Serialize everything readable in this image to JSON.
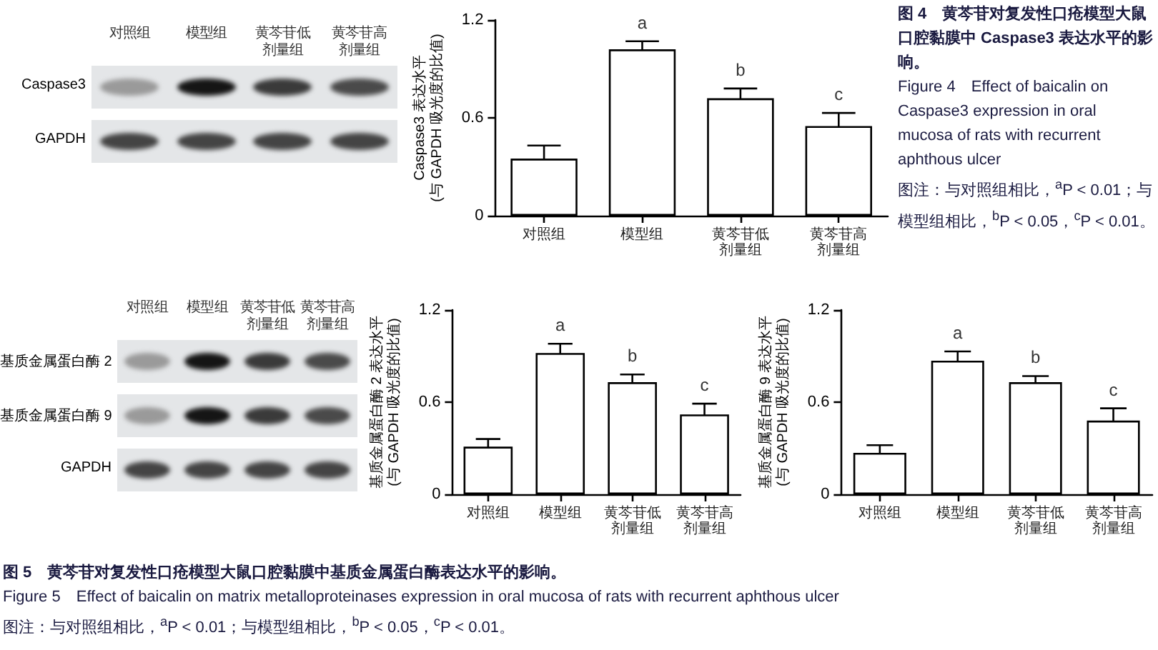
{
  "chart_data": [
    {
      "type": "bar",
      "ylabel": "Caspase3 表达水平\n(与 GAPDH 吸光度的比值)",
      "categories": [
        "对照组",
        "模型组",
        "黄芩苷低剂量组",
        "黄芩苷高剂量组"
      ],
      "values": [
        0.35,
        1.02,
        0.72,
        0.55
      ],
      "errors": [
        0.08,
        0.05,
        0.06,
        0.08
      ],
      "color": "#ffffff",
      "ylim": [
        0,
        1.2
      ],
      "yticks": [
        0,
        0.6,
        1.2
      ],
      "annotations": [
        {
          "text": "a",
          "x": "模型组",
          "y": 1.02
        },
        {
          "text": "b",
          "x": "黄芩苷低剂量组",
          "y": 0.72
        },
        {
          "text": "c",
          "x": "黄芩苷高剂量组",
          "y": 0.55
        },
        "图 4　黄芩苷对复发性口疮模型大鼠口腔黏膜中 Caspase3 表达水平的影响。",
        "Figure 4　Effect of baicalin on Caspase3 expression in oral mucosa of rats with recurrent aphthous ulcer",
        "图注：与对照组相比，$^{a}$P < 0.01；与模型组相比，$^{b}$P < 0.05，$^{c}$P < 0.01。",
        "对照组",
        "模型组",
        "黄芩苷低剂量组",
        "黄芩苷高剂量组",
        "Caspase3",
        "GAPDH"
      ]
    },
    {
      "type": "bar",
      "ylabel": "基质金属蛋白酶 2 表达水平\n(与 GAPDH 吸光度的比值)",
      "categories": [
        "对照组",
        "模型组",
        "黄芩苷低剂量组",
        "黄芩苷高剂量组"
      ],
      "values": [
        0.31,
        0.92,
        0.73,
        0.52
      ],
      "errors": [
        0.05,
        0.06,
        0.05,
        0.07
      ],
      "color": "#ffffff",
      "ylim": [
        0,
        1.2
      ],
      "yticks": [
        0,
        0.6,
        1.2
      ],
      "annotations": [
        {
          "text": "a",
          "x": "模型组",
          "y": 0.92
        },
        {
          "text": "b",
          "x": "黄芩苷低剂量组",
          "y": 0.73
        },
        {
          "text": "c",
          "x": "黄芩苷高剂量组",
          "y": 0.52
        },
        "图 5　黄芩苷对复发性口疮模型大鼠口腔黏膜中基质金属蛋白酶表达水平的影响。",
        "Figure 5　Effect of baicalin on matrix metalloproteinases expression in oral mucosa of rats with recurrent aphthous ulcer",
        "图注：与对照组相比，$^{a}$P < 0.01；与模型组相比，$^{b}$P < 0.05，$^{c}$P < 0.01。",
        "对照组",
        "模型组",
        "黄芩苷低剂量组",
        "黄芩苷高剂量组",
        "基质金属蛋白酶 2",
        "基质金属蛋白酶 9",
        "GAPDH"
      ]
    },
    {
      "type": "bar",
      "ylabel": "基质金属蛋白酶 9 表达水平\n(与 GAPDH 吸光度的比值)",
      "categories": [
        "对照组",
        "模型组",
        "黄芩苷低剂量组",
        "黄芩苷高剂量组"
      ],
      "values": [
        0.27,
        0.87,
        0.73,
        0.48
      ],
      "errors": [
        0.05,
        0.06,
        0.04,
        0.08
      ],
      "color": "#ffffff",
      "ylim": [
        0,
        1.2
      ],
      "yticks": [
        0,
        0.6,
        1.2
      ],
      "annotations": [
        {
          "text": "a",
          "x": "模型组",
          "y": 0.87
        },
        {
          "text": "b",
          "x": "黄芩苷低剂量组",
          "y": 0.73
        },
        {
          "text": "c",
          "x": "黄芩苷高剂量组",
          "y": 0.48
        }
      ]
    }
  ]
}
